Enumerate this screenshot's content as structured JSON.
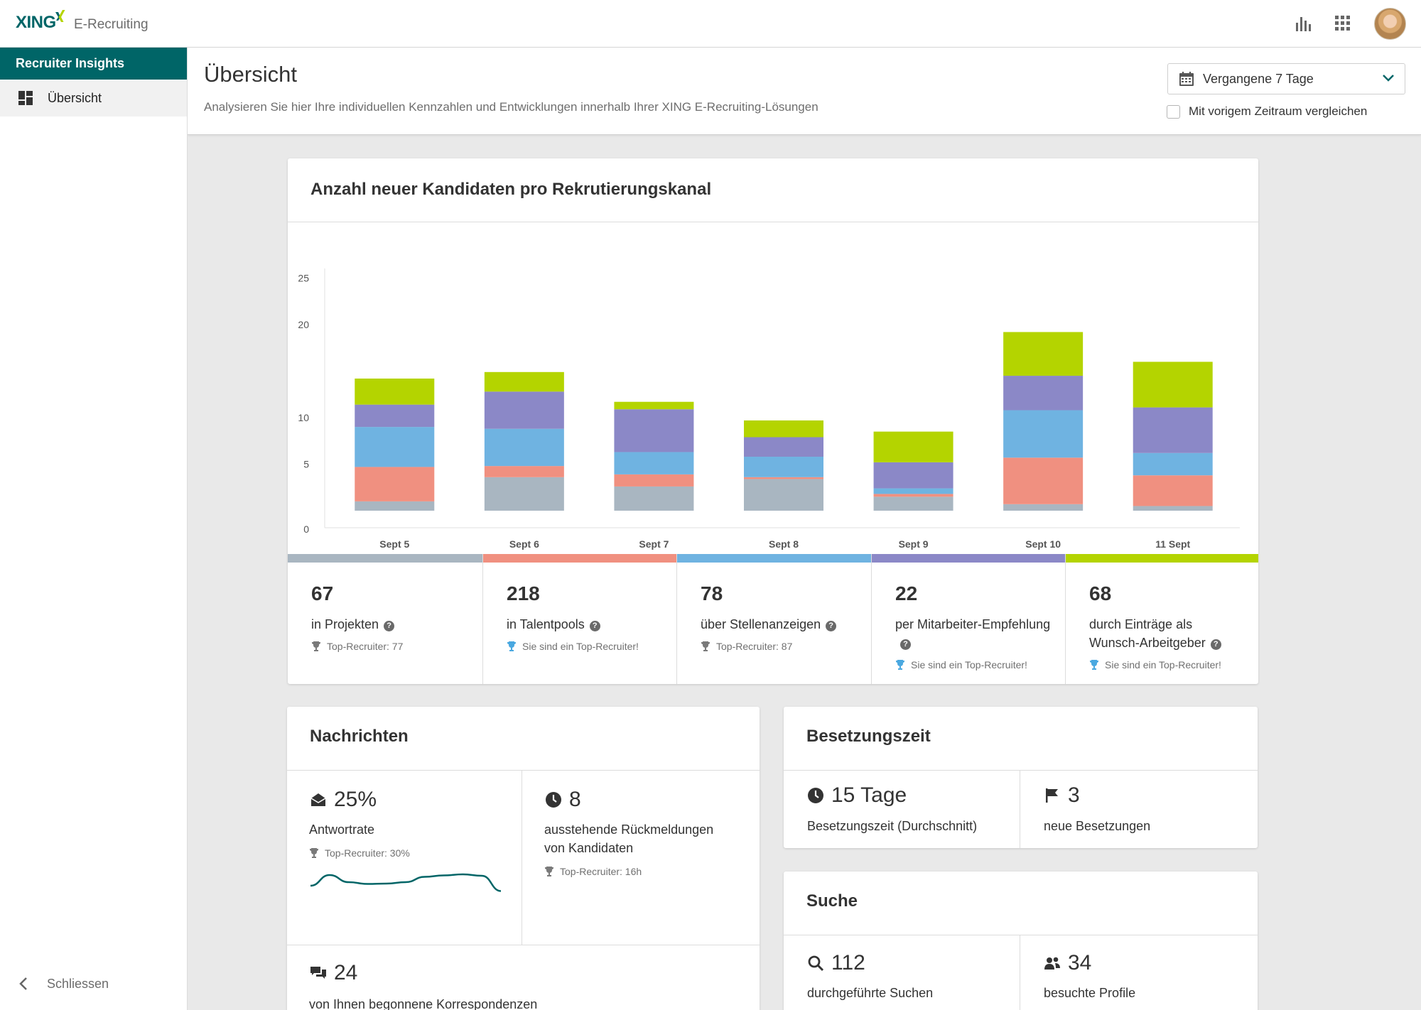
{
  "topbar": {
    "brand": "XING",
    "product": "E-Recruiting",
    "icons": [
      "bar-chart-icon",
      "apps-grid-icon",
      "user-avatar"
    ]
  },
  "sidebar": {
    "header": "Recruiter Insights",
    "items": [
      {
        "label": "Übersicht",
        "icon": "dashboard-icon"
      }
    ],
    "close_label": "Schliessen"
  },
  "page": {
    "title": "Übersicht",
    "subtitle": "Analysieren Sie hier Ihre individuellen Kennzahlen und Entwicklungen innerhalb Ihrer XING E-Recruiting-Lösungen",
    "period_select": "Vergangene 7 Tage",
    "compare_label": "Mit vorigem Zeitraum vergleichen",
    "compare_checked": false
  },
  "colors": {
    "brand": "#006567",
    "projekte": "#a9b6c1",
    "talentpools": "#f09080",
    "stellenanzeigen": "#6fb3e1",
    "mitarbeiter": "#8b88c7",
    "wunsch": "#b4d400",
    "sparkline": "#006567"
  },
  "chart_data": {
    "type": "bar",
    "stacked": true,
    "title": "Anzahl neuer Kandidaten pro Rekrutierungskanal",
    "categories": [
      "Sept 5",
      "Sept 6",
      "Sept 7",
      "Sept 8",
      "Sept 9",
      "Sept 10",
      "11 Sept"
    ],
    "y_ticks": [
      0,
      5,
      10,
      20,
      25
    ],
    "series": [
      {
        "key": "projekte",
        "values": [
          1,
          3.6,
          2.6,
          3.4,
          1.5,
          0.7,
          0.5
        ]
      },
      {
        "key": "talentpools",
        "values": [
          3.7,
          1.2,
          1.3,
          0.2,
          0.3,
          5.0,
          3.3
        ]
      },
      {
        "key": "stellenanzeigen",
        "values": [
          4.3,
          4.0,
          2.4,
          2.2,
          0.6,
          5.1,
          2.4
        ]
      },
      {
        "key": "mitarbeiter",
        "values": [
          2.4,
          4.0,
          4.6,
          2.1,
          2.8,
          3.7,
          4.9
        ]
      },
      {
        "key": "wunsch",
        "values": [
          2.8,
          2.1,
          0.8,
          1.8,
          3.3,
          4.7,
          4.9
        ]
      }
    ]
  },
  "channel_stats": [
    {
      "key": "projekte",
      "value": "67",
      "label": "in Projekten",
      "top": "Top-Recruiter: 77",
      "is_top": false
    },
    {
      "key": "talentpools",
      "value": "218",
      "label": "in Talentpools",
      "top": "Sie sind ein Top-Recruiter!",
      "is_top": true
    },
    {
      "key": "stellenanzeigen",
      "value": "78",
      "label": "über Stellenanzeigen",
      "top": "Top-Recruiter: 87",
      "is_top": false
    },
    {
      "key": "mitarbeiter",
      "value": "22",
      "label": "per Mitarbeiter-Empfehlung",
      "top": "Sie sind ein Top-Recruiter!",
      "is_top": true
    },
    {
      "key": "wunsch",
      "value": "68",
      "label": "durch Einträge als Wunsch-Arbeitgeber",
      "top": "Sie sind ein Top-Recruiter!",
      "is_top": true
    }
  ],
  "nachrichten": {
    "title": "Nachrichten",
    "antwortrate": {
      "value": "25%",
      "label": "Antwortrate",
      "top": "Top-Recruiter: 30%",
      "sparkline": [
        4,
        7,
        5,
        4.5,
        4.6,
        5,
        6.5,
        6.9,
        7.2,
        6.8,
        2.5
      ]
    },
    "ausstehend": {
      "value": "8",
      "label": "ausstehende Rückmeldungen von Kandidaten",
      "top": "Top-Recruiter: 16h"
    },
    "korrespondenzen": {
      "value": "24",
      "label": "von Ihnen begonnene Korrespondenzen"
    }
  },
  "besetzungszeit": {
    "title": "Besetzungszeit",
    "durchschnitt": {
      "value": "15 Tage",
      "label": "Besetzungszeit (Durchschnitt)"
    },
    "neue": {
      "value": "3",
      "label": "neue Besetzungen"
    }
  },
  "suche": {
    "title": "Suche",
    "suchen": {
      "value": "112",
      "label": "durchgeführte Suchen"
    },
    "profile": {
      "value": "34",
      "label": "besuchte Profile"
    }
  }
}
